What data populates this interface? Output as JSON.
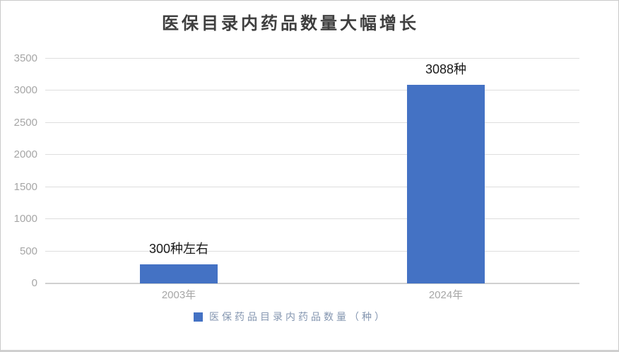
{
  "chart_data": {
    "type": "bar",
    "title": "医保目录内药品数量大幅增长",
    "categories": [
      "2003年",
      "2024年"
    ],
    "values": [
      300,
      3088
    ],
    "data_labels": [
      "300种左右",
      "3088种"
    ],
    "series": [
      {
        "name": "医保药品目录内药品数量（种）",
        "values": [
          300,
          3088
        ]
      }
    ],
    "legend": {
      "position": "bottom",
      "label": "医保药品目录内药品数量（种）"
    },
    "xlabel": "",
    "ylabel": "",
    "ylim": [
      0,
      3500
    ],
    "ytick_interval": 500,
    "yticks": [
      0,
      500,
      1000,
      1500,
      2000,
      2500,
      3000,
      3500
    ],
    "grid": true,
    "colors": {
      "bar": "#4472C4",
      "title": "#3F3F3F",
      "axis_label": "#A6A6A6",
      "gridline": "#DEDEDE",
      "axis_line": "#D0D0D0",
      "data_label": "#1A1A1A",
      "legend_text": "#8496B0",
      "frame_border": "#C9C9C9",
      "background": "#FFFFFF"
    }
  }
}
